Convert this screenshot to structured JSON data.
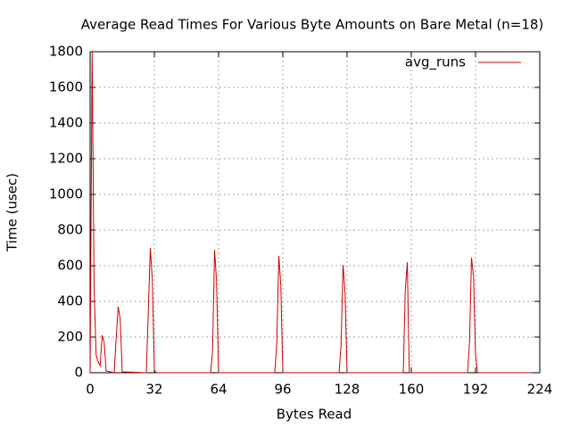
{
  "chart_data": {
    "type": "line",
    "title": "Average Read Times For Various Byte Amounts on Bare Metal (n=18)",
    "xlabel": "Bytes Read",
    "ylabel": "Time (usec)",
    "x": [
      0,
      1,
      2,
      3,
      4,
      5,
      6,
      7,
      8,
      12,
      13,
      14,
      15,
      16,
      28,
      29,
      30,
      31,
      32,
      33,
      60,
      61,
      62,
      63,
      64,
      92,
      93,
      94,
      95,
      96,
      124,
      125,
      126,
      127,
      128,
      156,
      157,
      158,
      159,
      188,
      189,
      190,
      191,
      192,
      193,
      220
    ],
    "series": [
      {
        "name": "avg_runs",
        "color": "#cc0000",
        "values": [
          0,
          1800,
          470,
          100,
          60,
          40,
          210,
          170,
          10,
          0,
          200,
          370,
          300,
          5,
          0,
          350,
          700,
          520,
          15,
          0,
          0,
          120,
          690,
          510,
          0,
          0,
          170,
          655,
          490,
          0,
          0,
          150,
          605,
          450,
          0,
          0,
          460,
          620,
          0,
          0,
          170,
          645,
          540,
          100,
          0,
          0
        ]
      }
    ],
    "xlim": [
      0,
      224
    ],
    "xticks": [
      0,
      32,
      64,
      96,
      128,
      160,
      192,
      224
    ],
    "ylim": [
      0,
      1800
    ],
    "yticks": [
      0,
      200,
      400,
      600,
      800,
      1000,
      1200,
      1400,
      1600,
      1800
    ],
    "grid": true,
    "legend": "top-right"
  }
}
